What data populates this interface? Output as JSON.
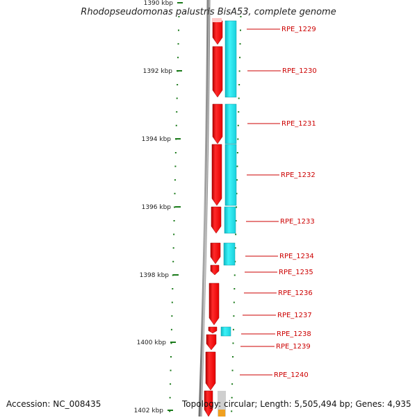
{
  "header": {
    "title": "Rhodopseudomonas palustris BisA53, complete genome"
  },
  "footer": {
    "accession": "Accession: NC_008435",
    "summary": "Topology: circular; Length: 5,505,494 bp; Genes: 4,935"
  },
  "scale": {
    "ticks": [
      "1390 kbp",
      "1392 kbp",
      "1394 kbp",
      "1396 kbp",
      "1398 kbp",
      "1400 kbp",
      "1402 kbp"
    ]
  },
  "genes": [
    {
      "name": "RPE_1229"
    },
    {
      "name": "RPE_1230"
    },
    {
      "name": "RPE_1231"
    },
    {
      "name": "RPE_1232"
    },
    {
      "name": "RPE_1233"
    },
    {
      "name": "RPE_1234"
    },
    {
      "name": "RPE_1235"
    },
    {
      "name": "RPE_1236"
    },
    {
      "name": "RPE_1237"
    },
    {
      "name": "RPE_1238"
    },
    {
      "name": "RPE_1239"
    },
    {
      "name": "RPE_1240"
    }
  ],
  "colors": {
    "gene": "#ff0000",
    "cds": "#19e6f0",
    "backbone": "#8c8c8c",
    "tick": "#1a7a1a",
    "label": "#cc0000"
  }
}
